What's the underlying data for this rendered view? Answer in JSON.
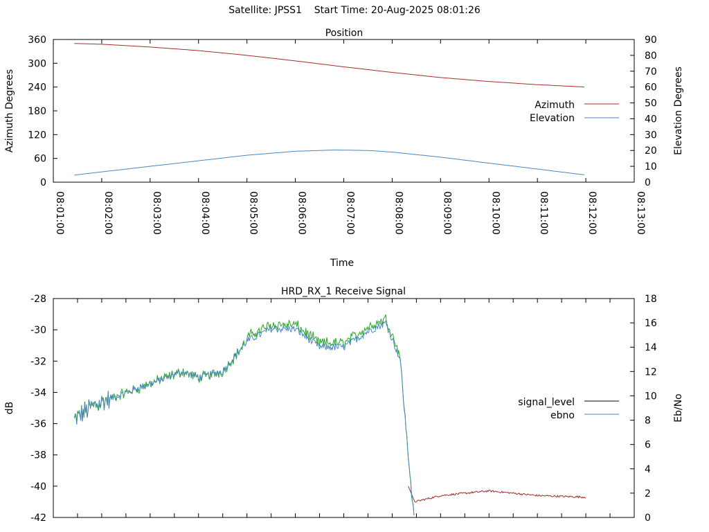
{
  "header": {
    "satellite": "Satellite: JPSS1",
    "start_time": "Start Time: 20-Aug-2025 08:01:26"
  },
  "colors": {
    "azimuth": "#a52a2a",
    "elevation": "#4a86c0",
    "signal_level": "#000000",
    "ebno": "#4a86c0",
    "green_trace": "#22aa22",
    "tail_trace": "#a52a2a"
  },
  "chart_data": [
    {
      "type": "line",
      "title": "Position",
      "xlabel": "Time",
      "ylabel": "Azimuth Degrees",
      "y2label": "Elevation Degrees",
      "ylim": [
        0,
        360
      ],
      "y2lim": [
        0,
        90
      ],
      "yticks": [
        "0",
        "60",
        "120",
        "180",
        "240",
        "300",
        "360"
      ],
      "y2ticks": [
        "0",
        "10",
        "20",
        "30",
        "40",
        "50",
        "60",
        "70",
        "80",
        "90"
      ],
      "xticks": [
        "08:01:00",
        "08:02:00",
        "08:03:00",
        "08:04:00",
        "08:05:00",
        "08:06:00",
        "08:07:00",
        "08:08:00",
        "08:09:00",
        "08:10:00",
        "08:11:00",
        "08:12:00",
        "08:13:00"
      ],
      "legend_position": "right",
      "series": [
        {
          "name": "Azimuth",
          "axis": "y1",
          "x": [
            "08:01:26",
            "08:02:00",
            "08:03:00",
            "08:04:00",
            "08:05:00",
            "08:06:00",
            "08:07:00",
            "08:08:00",
            "08:09:00",
            "08:10:00",
            "08:11:00",
            "08:12:00"
          ],
          "values": [
            350,
            348,
            341,
            332,
            320,
            306,
            291,
            277,
            264,
            254,
            246,
            240
          ]
        },
        {
          "name": "Elevation",
          "axis": "y2",
          "x": [
            "08:01:26",
            "08:02:00",
            "08:03:00",
            "08:04:00",
            "08:05:00",
            "08:06:00",
            "08:06:48",
            "08:07:30",
            "08:08:00",
            "08:09:00",
            "08:10:00",
            "08:11:00",
            "08:12:00"
          ],
          "values": [
            4.5,
            6.5,
            10.0,
            13.5,
            17.0,
            19.5,
            20.3,
            20.0,
            19.0,
            15.8,
            12.0,
            8.3,
            4.5
          ]
        }
      ]
    },
    {
      "type": "line",
      "title": "HRD_RX_1 Receive Signal",
      "ylabel": "dB",
      "y2label": "Eb/No",
      "ylim": [
        -42,
        -28
      ],
      "y2lim": [
        0,
        18
      ],
      "yticks": [
        "-42",
        "-40",
        "-38",
        "-36",
        "-34",
        "-32",
        "-30",
        "-28"
      ],
      "y2ticks": [
        "0",
        "2",
        "4",
        "6",
        "8",
        "10",
        "12",
        "14",
        "16",
        "18"
      ],
      "legend_position": "right",
      "series": [
        {
          "name": "signal_level",
          "axis": "y1"
        },
        {
          "name": "ebno",
          "axis": "y2",
          "x": [
            "08:01:26",
            "08:01:45",
            "08:02:00",
            "08:03:00",
            "08:03:40",
            "08:04:00",
            "08:04:30",
            "08:05:00",
            "08:05:30",
            "08:06:00",
            "08:06:30",
            "08:07:00",
            "08:07:30",
            "08:07:52",
            "08:08:10",
            "08:08:20",
            "08:08:27"
          ],
          "values": [
            8.0,
            9.0,
            9.5,
            11.0,
            12.0,
            11.5,
            12.0,
            14.5,
            15.5,
            15.5,
            14.0,
            14.0,
            15.3,
            16.0,
            13.0,
            5.0,
            0
          ]
        }
      ]
    }
  ]
}
